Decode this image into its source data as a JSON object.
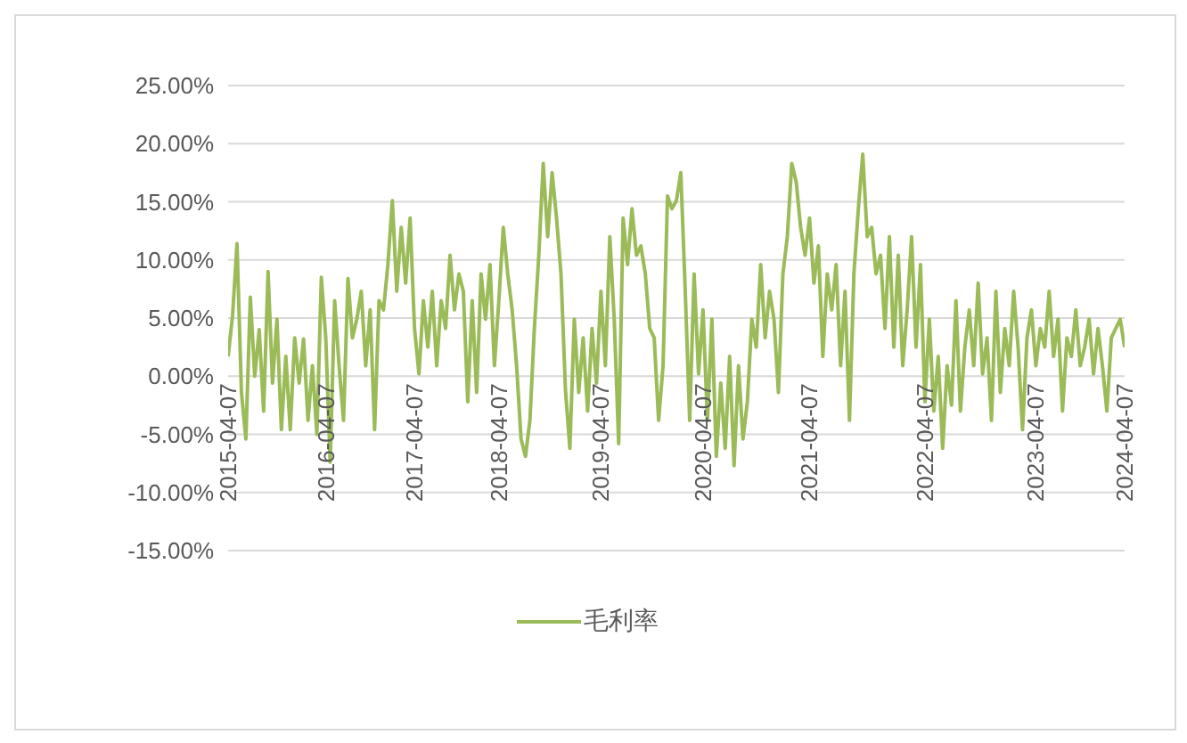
{
  "chart_data": {
    "type": "line",
    "categories": [
      "2015-04-07",
      null,
      null,
      null,
      null,
      null,
      null,
      null,
      null,
      null,
      null,
      null,
      null,
      null,
      null,
      null,
      null,
      null,
      null,
      null,
      null,
      null,
      "2016-04-07",
      null,
      null,
      null,
      null,
      null,
      null,
      null,
      null,
      null,
      null,
      null,
      null,
      null,
      null,
      null,
      null,
      null,
      null,
      null,
      "2017-04-07",
      null,
      null,
      null,
      null,
      null,
      null,
      null,
      null,
      null,
      null,
      null,
      null,
      null,
      null,
      null,
      null,
      null,
      null,
      "2018-04-07",
      null,
      null,
      null,
      null,
      null,
      null,
      null,
      null,
      null,
      null,
      null,
      null,
      null,
      null,
      null,
      null,
      null,
      null,
      null,
      null,
      null,
      null,
      "2019-04-07",
      null,
      null,
      null,
      null,
      null,
      null,
      null,
      null,
      null,
      null,
      null,
      null,
      null,
      null,
      null,
      null,
      null,
      null,
      null,
      null,
      null,
      null,
      "2020-04-07",
      null,
      null,
      null,
      null,
      null,
      null,
      null,
      null,
      null,
      null,
      null,
      null,
      null,
      null,
      null,
      null,
      null,
      null,
      null,
      null,
      null,
      null,
      null,
      "2021-04-07",
      null,
      null,
      null,
      null,
      null,
      null,
      null,
      null,
      null,
      null,
      null,
      null,
      null,
      null,
      null,
      null,
      null,
      null,
      null,
      null,
      null,
      null,
      null,
      null,
      null,
      "2022-04-07",
      null,
      null,
      null,
      null,
      null,
      null,
      null,
      null,
      null,
      null,
      null,
      null,
      null,
      null,
      null,
      null,
      null,
      null,
      null,
      null,
      null,
      null,
      null,
      null,
      "2023-04-07",
      null,
      null,
      null,
      null,
      null,
      null,
      null,
      null,
      null,
      null,
      null,
      null,
      null,
      null,
      null,
      null,
      null,
      null,
      null,
      "2024-04-07"
    ],
    "series": [
      {
        "name": "毛利率",
        "color": "#9bbb59",
        "values": [
          1.7,
          5.2,
          11.4,
          -1.4,
          -5.4,
          6.8,
          0,
          4,
          -3,
          9,
          -0.6,
          4.9,
          -4.6,
          1.7,
          -4.6,
          3.3,
          -0.6,
          3.2,
          -3.8,
          0.9,
          -5,
          8.5,
          3.3,
          -7.4,
          6.5,
          0.9,
          -3.8,
          8.4,
          3.3,
          4.9,
          7.3,
          0.9,
          5.7,
          -4.6,
          6.5,
          5.7,
          9.6,
          15.1,
          7.3,
          12.8,
          8,
          13.6,
          4.1,
          0.2,
          6.5,
          2.5,
          7.3,
          0.9,
          6.5,
          4.1,
          10.4,
          5.7,
          8.8,
          7.3,
          -2.2,
          6.5,
          -1.4,
          8.8,
          4.9,
          9.6,
          0.9,
          6.5,
          12.8,
          8.8,
          5.7,
          0.9,
          -5.4,
          -6.9,
          -3.8,
          4.1,
          10.4,
          18.3,
          12,
          17.5,
          13.6,
          8.8,
          -1.1,
          -6.2,
          4.9,
          -1.4,
          3.3,
          -3,
          4.1,
          -0.6,
          7.3,
          0.9,
          12,
          4.9,
          -5.8,
          13.6,
          9.6,
          14.4,
          10.4,
          11.2,
          8.8,
          4.1,
          3.3,
          -3.8,
          0.9,
          15.5,
          14.4,
          15.1,
          17.5,
          7.3,
          -3.8,
          8.8,
          0.2,
          5.7,
          -3.8,
          4.9,
          -6.9,
          -0.6,
          -6.2,
          1.7,
          -7.7,
          0.9,
          -5.4,
          -2.2,
          4.9,
          2.5,
          9.6,
          3.3,
          7.3,
          4.9,
          -1.4,
          8.8,
          12,
          18.3,
          16.7,
          12.8,
          10.4,
          13.6,
          8,
          11.2,
          1.7,
          8.8,
          5.7,
          9.6,
          0.9,
          7.3,
          -3.8,
          8.8,
          14.4,
          19.1,
          12,
          12.8,
          8.8,
          10.4,
          4.1,
          12,
          2.5,
          10.4,
          0.9,
          5.7,
          12,
          2.5,
          9.6,
          -2.2,
          4.9,
          -3,
          1.7,
          -6.2,
          0.9,
          -2.5,
          6.5,
          -3,
          2.5,
          5.7,
          0.9,
          8,
          0.2,
          3.3,
          -3.8,
          7.3,
          -1.4,
          4.1,
          0.9,
          7.3,
          2.5,
          -4.6,
          3.3,
          5.7,
          0.9,
          4.1,
          2.5,
          7.3,
          1.7,
          4.9,
          -3,
          3.3,
          1.7,
          5.7,
          0.9,
          2.5,
          4.9,
          0.2,
          4.1,
          0.9,
          -3,
          3.3,
          4.1,
          4.9,
          2.5
        ]
      }
    ],
    "ylim": [
      -15,
      25
    ],
    "yticks": [
      {
        "value": -15,
        "label": "-15.00%"
      },
      {
        "value": -10,
        "label": "-10.00%"
      },
      {
        "value": -5,
        "label": "-5.00%"
      },
      {
        "value": 0,
        "label": "0.00%"
      },
      {
        "value": 5,
        "label": "5.00%"
      },
      {
        "value": 10,
        "label": "10.00%"
      },
      {
        "value": 15,
        "label": "15.00%"
      },
      {
        "value": 20,
        "label": "20.00%"
      },
      {
        "value": 25,
        "label": "25.00%"
      }
    ],
    "grid": "y",
    "legend": "bottom",
    "marker": "none",
    "line_style": "solid"
  }
}
